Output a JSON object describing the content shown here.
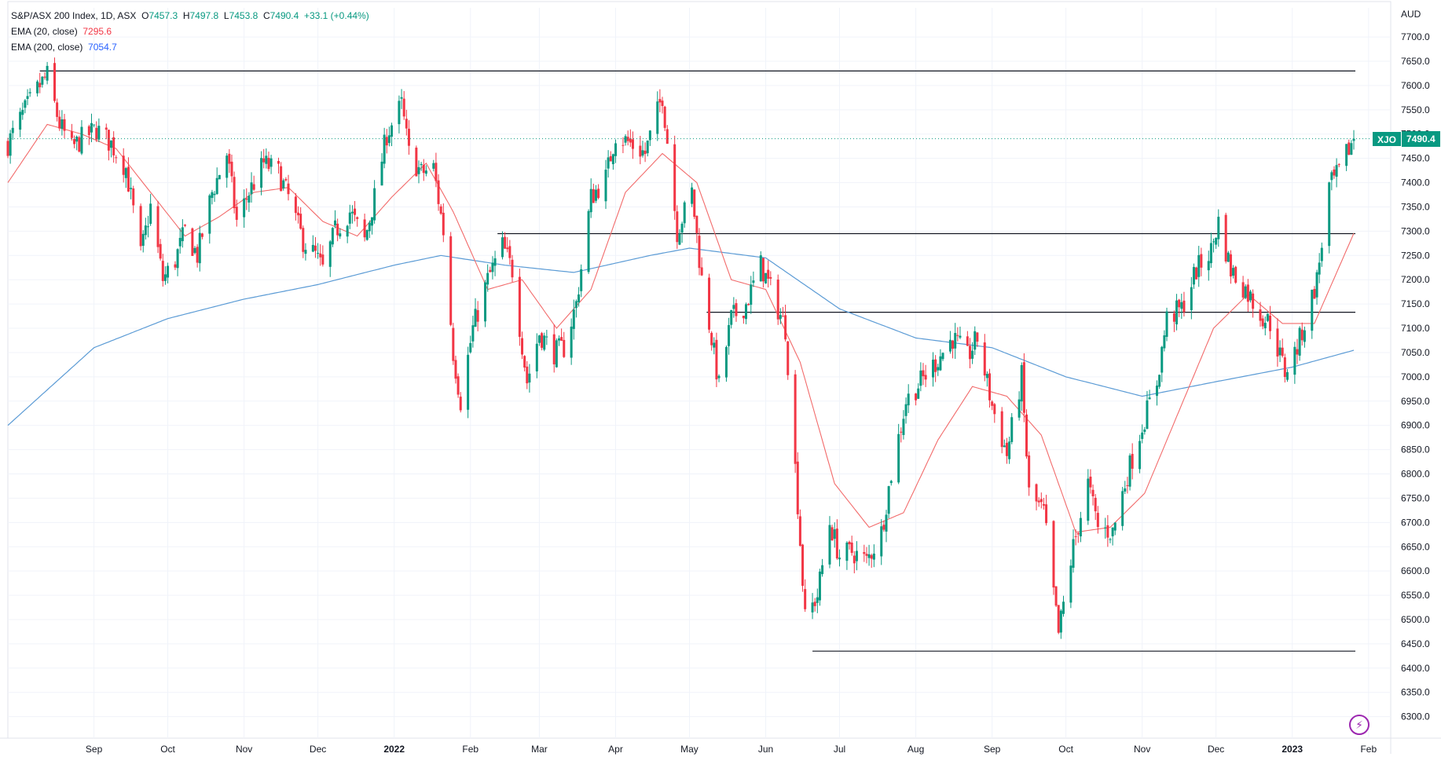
{
  "legend": {
    "title": "S&P/ASX 200 Index, 1D, ASX",
    "open_label": "O",
    "open": "7457.3",
    "high_label": "H",
    "high": "7497.8",
    "low_label": "L",
    "low": "7453.8",
    "close_label": "C",
    "close": "7490.4",
    "change": "+33.1 (+0.44%)",
    "ema20_label": "EMA (20, close)",
    "ema20_value": "7295.6",
    "ema200_label": "EMA (200, close)",
    "ema200_value": "7054.7"
  },
  "badge": {
    "symbol": "XJO",
    "price": "7490.4"
  },
  "icons": {
    "bolt": "lightning-icon"
  },
  "chart_data": {
    "type": "candlestick",
    "currency_label": "AUD",
    "ylim": [
      6280,
      7760
    ],
    "y_ticks": [
      6300,
      6350,
      6400,
      6450,
      6500,
      6550,
      6600,
      6650,
      6700,
      6750,
      6800,
      6850,
      6900,
      6950,
      7000,
      7050,
      7100,
      7150,
      7200,
      7250,
      7300,
      7350,
      7400,
      7450,
      7500,
      7550,
      7600,
      7650,
      7700
    ],
    "x_ticks": [
      {
        "label": "Sep",
        "date": "2021-09-01"
      },
      {
        "label": "Oct",
        "date": "2021-10-01"
      },
      {
        "label": "Nov",
        "date": "2021-11-01"
      },
      {
        "label": "Dec",
        "date": "2021-12-01"
      },
      {
        "label": "2022",
        "date": "2022-01-01",
        "bold": true
      },
      {
        "label": "Feb",
        "date": "2022-02-01"
      },
      {
        "label": "Mar",
        "date": "2022-03-01"
      },
      {
        "label": "Apr",
        "date": "2022-04-01"
      },
      {
        "label": "May",
        "date": "2022-05-01"
      },
      {
        "label": "Jun",
        "date": "2022-06-01"
      },
      {
        "label": "Jul",
        "date": "2022-07-01"
      },
      {
        "label": "Aug",
        "date": "2022-08-01"
      },
      {
        "label": "Sep",
        "date": "2022-09-01"
      },
      {
        "label": "Oct",
        "date": "2022-10-01"
      },
      {
        "label": "Nov",
        "date": "2022-11-01"
      },
      {
        "label": "Dec",
        "date": "2022-12-01"
      },
      {
        "label": "2023",
        "date": "2023-01-01",
        "bold": true
      },
      {
        "label": "Feb",
        "date": "2023-02-01"
      }
    ],
    "x_range": [
      "2021-07-28",
      "2023-02-10"
    ],
    "close_series": [
      [
        "2021-07-28",
        7480
      ],
      [
        "2021-08-03",
        7540
      ],
      [
        "2021-08-10",
        7600
      ],
      [
        "2021-08-13",
        7620
      ],
      [
        "2021-08-18",
        7520
      ],
      [
        "2021-08-23",
        7470
      ],
      [
        "2021-08-27",
        7490
      ],
      [
        "2021-09-02",
        7510
      ],
      [
        "2021-09-08",
        7480
      ],
      [
        "2021-09-14",
        7430
      ],
      [
        "2021-09-20",
        7250
      ],
      [
        "2021-09-24",
        7350
      ],
      [
        "2021-09-29",
        7200
      ],
      [
        "2021-10-04",
        7240
      ],
      [
        "2021-10-08",
        7300
      ],
      [
        "2021-10-13",
        7250
      ],
      [
        "2021-10-19",
        7380
      ],
      [
        "2021-10-25",
        7460
      ],
      [
        "2021-10-29",
        7320
      ],
      [
        "2021-11-03",
        7380
      ],
      [
        "2021-11-09",
        7440
      ],
      [
        "2021-11-15",
        7420
      ],
      [
        "2021-11-19",
        7370
      ],
      [
        "2021-11-25",
        7280
      ],
      [
        "2021-11-30",
        7250
      ],
      [
        "2021-12-03",
        7220
      ],
      [
        "2021-12-08",
        7300
      ],
      [
        "2021-12-14",
        7340
      ],
      [
        "2021-12-20",
        7280
      ],
      [
        "2021-12-24",
        7370
      ],
      [
        "2021-12-29",
        7500
      ],
      [
        "2022-01-04",
        7560
      ],
      [
        "2022-01-07",
        7460
      ],
      [
        "2022-01-12",
        7420
      ],
      [
        "2022-01-17",
        7430
      ],
      [
        "2022-01-21",
        7300
      ],
      [
        "2022-01-25",
        7050
      ],
      [
        "2022-01-28",
        6950
      ],
      [
        "2022-02-02",
        7100
      ],
      [
        "2022-02-08",
        7200
      ],
      [
        "2022-02-14",
        7270
      ],
      [
        "2022-02-18",
        7220
      ],
      [
        "2022-02-24",
        6990
      ],
      [
        "2022-03-01",
        7090
      ],
      [
        "2022-03-07",
        7050
      ],
      [
        "2022-03-11",
        7060
      ],
      [
        "2022-03-16",
        7150
      ],
      [
        "2022-03-22",
        7370
      ],
      [
        "2022-03-28",
        7410
      ],
      [
        "2022-04-01",
        7500
      ],
      [
        "2022-04-07",
        7480
      ],
      [
        "2022-04-13",
        7460
      ],
      [
        "2022-04-20",
        7580
      ],
      [
        "2022-04-26",
        7300
      ],
      [
        "2022-05-02",
        7380
      ],
      [
        "2022-05-06",
        7200
      ],
      [
        "2022-05-10",
        7080
      ],
      [
        "2022-05-13",
        6980
      ],
      [
        "2022-05-18",
        7120
      ],
      [
        "2022-05-24",
        7150
      ],
      [
        "2022-05-30",
        7230
      ],
      [
        "2022-06-03",
        7180
      ],
      [
        "2022-06-09",
        7100
      ],
      [
        "2022-06-14",
        6740
      ],
      [
        "2022-06-17",
        6500
      ],
      [
        "2022-06-22",
        6550
      ],
      [
        "2022-06-27",
        6700
      ],
      [
        "2022-07-01",
        6630
      ],
      [
        "2022-07-06",
        6640
      ],
      [
        "2022-07-12",
        6620
      ],
      [
        "2022-07-18",
        6680
      ],
      [
        "2022-07-22",
        6800
      ],
      [
        "2022-07-28",
        6950
      ],
      [
        "2022-08-03",
        6990
      ],
      [
        "2022-08-09",
        7030
      ],
      [
        "2022-08-16",
        7080
      ],
      [
        "2022-08-22",
        7040
      ],
      [
        "2022-08-26",
        7080
      ],
      [
        "2022-09-01",
        6940
      ],
      [
        "2022-09-07",
        6840
      ],
      [
        "2022-09-13",
        7000
      ],
      [
        "2022-09-16",
        6760
      ],
      [
        "2022-09-22",
        6720
      ],
      [
        "2022-09-28",
        6470
      ],
      [
        "2022-10-04",
        6650
      ],
      [
        "2022-10-10",
        6780
      ],
      [
        "2022-10-14",
        6690
      ],
      [
        "2022-10-20",
        6680
      ],
      [
        "2022-10-26",
        6800
      ],
      [
        "2022-11-01",
        6900
      ],
      [
        "2022-11-07",
        6990
      ],
      [
        "2022-11-11",
        7120
      ],
      [
        "2022-11-17",
        7140
      ],
      [
        "2022-11-23",
        7220
      ],
      [
        "2022-11-29",
        7260
      ],
      [
        "2022-12-02",
        7320
      ],
      [
        "2022-12-07",
        7220
      ],
      [
        "2022-12-13",
        7180
      ],
      [
        "2022-12-19",
        7130
      ],
      [
        "2022-12-23",
        7110
      ],
      [
        "2022-12-29",
        7010
      ],
      [
        "2023-01-03",
        7060
      ],
      [
        "2023-01-06",
        7110
      ],
      [
        "2023-01-11",
        7200
      ],
      [
        "2023-01-16",
        7390
      ],
      [
        "2023-01-20",
        7420
      ],
      [
        "2023-01-24",
        7470
      ],
      [
        "2023-01-26",
        7490.4
      ]
    ],
    "ema20_series": [
      [
        "2021-07-28",
        7400
      ],
      [
        "2021-08-13",
        7520
      ],
      [
        "2021-08-27",
        7500
      ],
      [
        "2021-09-10",
        7470
      ],
      [
        "2021-09-24",
        7380
      ],
      [
        "2021-10-08",
        7290
      ],
      [
        "2021-10-22",
        7330
      ],
      [
        "2021-11-05",
        7380
      ],
      [
        "2021-11-19",
        7390
      ],
      [
        "2021-12-03",
        7320
      ],
      [
        "2021-12-17",
        7290
      ],
      [
        "2021-12-31",
        7370
      ],
      [
        "2022-01-14",
        7440
      ],
      [
        "2022-01-25",
        7340
      ],
      [
        "2022-02-08",
        7180
      ],
      [
        "2022-02-22",
        7200
      ],
      [
        "2022-03-08",
        7100
      ],
      [
        "2022-03-22",
        7180
      ],
      [
        "2022-04-05",
        7380
      ],
      [
        "2022-04-20",
        7460
      ],
      [
        "2022-05-04",
        7400
      ],
      [
        "2022-05-18",
        7200
      ],
      [
        "2022-06-01",
        7180
      ],
      [
        "2022-06-15",
        7030
      ],
      [
        "2022-06-29",
        6780
      ],
      [
        "2022-07-13",
        6690
      ],
      [
        "2022-07-27",
        6720
      ],
      [
        "2022-08-10",
        6870
      ],
      [
        "2022-08-24",
        6980
      ],
      [
        "2022-09-07",
        6960
      ],
      [
        "2022-09-21",
        6880
      ],
      [
        "2022-10-05",
        6680
      ],
      [
        "2022-10-19",
        6690
      ],
      [
        "2022-11-02",
        6760
      ],
      [
        "2022-11-16",
        6930
      ],
      [
        "2022-11-30",
        7100
      ],
      [
        "2022-12-14",
        7170
      ],
      [
        "2022-12-28",
        7110
      ],
      [
        "2023-01-10",
        7110
      ],
      [
        "2023-01-26",
        7295.6
      ]
    ],
    "ema200_series": [
      [
        "2021-07-28",
        6900
      ],
      [
        "2021-09-01",
        7060
      ],
      [
        "2021-10-01",
        7120
      ],
      [
        "2021-11-01",
        7160
      ],
      [
        "2021-12-01",
        7190
      ],
      [
        "2022-01-01",
        7230
      ],
      [
        "2022-01-20",
        7250
      ],
      [
        "2022-02-15",
        7230
      ],
      [
        "2022-03-15",
        7215
      ],
      [
        "2022-04-15",
        7250
      ],
      [
        "2022-05-01",
        7265
      ],
      [
        "2022-06-01",
        7245
      ],
      [
        "2022-07-01",
        7140
      ],
      [
        "2022-08-01",
        7080
      ],
      [
        "2022-09-01",
        7060
      ],
      [
        "2022-10-01",
        7000
      ],
      [
        "2022-11-01",
        6960
      ],
      [
        "2022-12-01",
        6990
      ],
      [
        "2023-01-01",
        7020
      ],
      [
        "2023-01-26",
        7054.7
      ]
    ],
    "horizontal_lines": [
      {
        "value": 7630,
        "from": "2021-08-10",
        "to": "2023-01-26"
      },
      {
        "value": 7295,
        "from": "2022-02-12",
        "to": "2023-01-26"
      },
      {
        "value": 7133,
        "from": "2022-05-08",
        "to": "2023-01-26"
      },
      {
        "value": 6435,
        "from": "2022-06-20",
        "to": "2023-01-26"
      }
    ],
    "last_price_line": 7490.4
  }
}
